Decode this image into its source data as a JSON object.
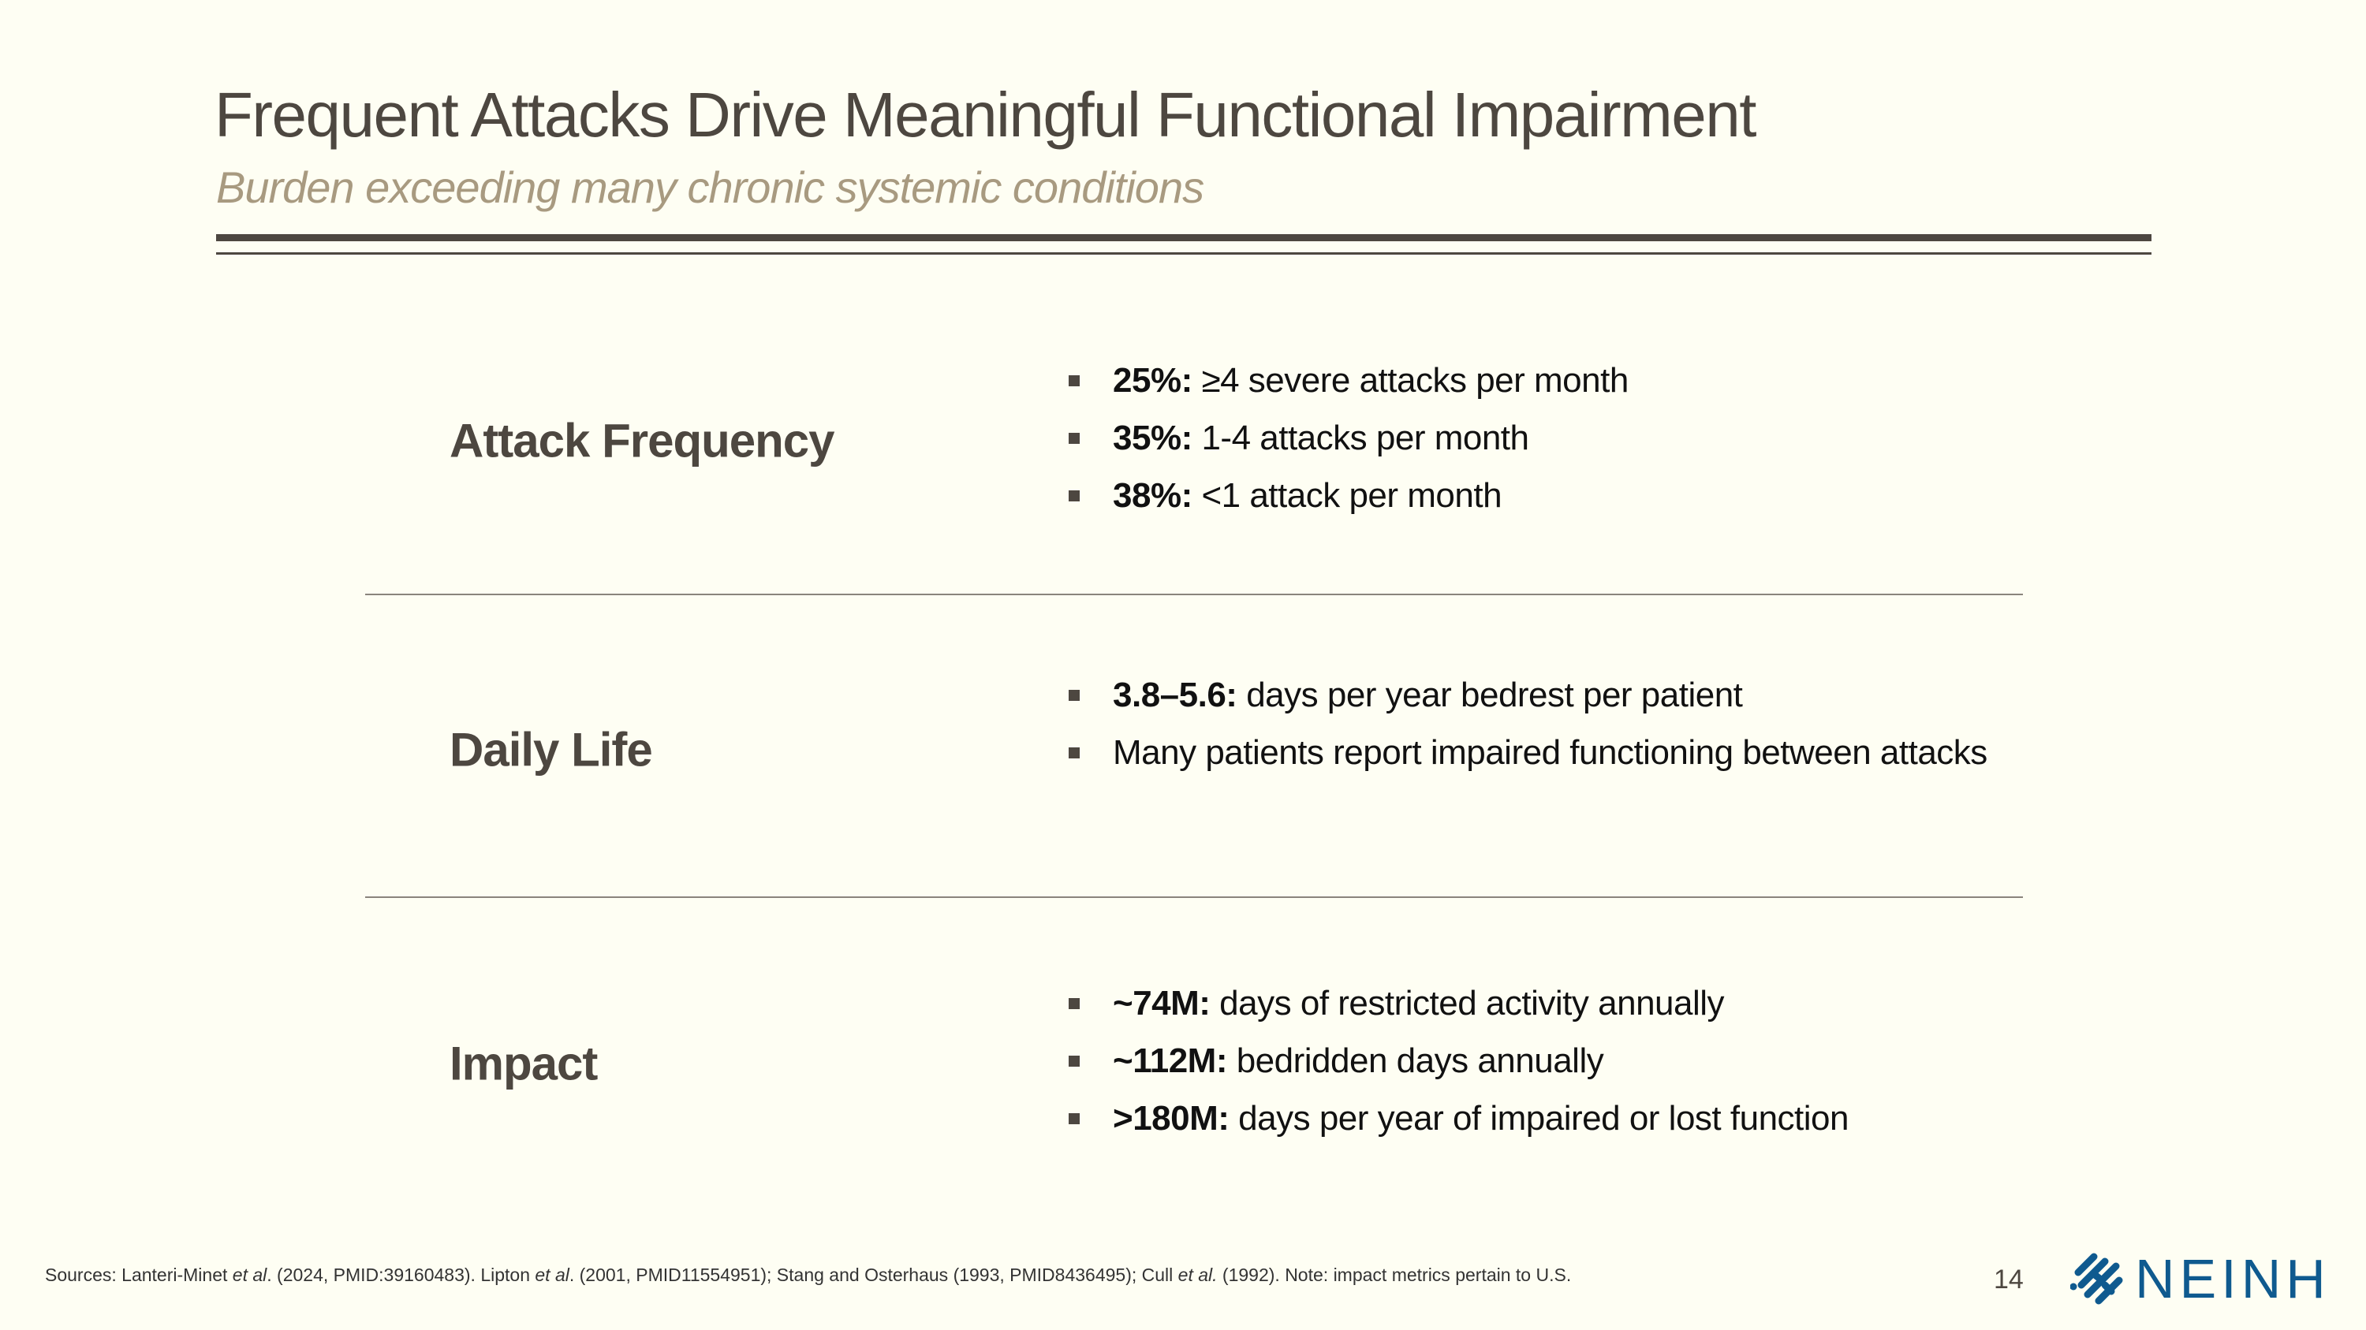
{
  "header": {
    "title": "Frequent Attacks Drive Meaningful Functional Impairment",
    "subtitle": "Burden exceeding many chronic systemic conditions"
  },
  "sections": [
    {
      "label": "Attack Frequency",
      "bullets": [
        {
          "bold": "25%:",
          "text": " ≥4 severe attacks per month"
        },
        {
          "bold": "35%:",
          "text": " 1-4 attacks per month"
        },
        {
          "bold": "38%:",
          "text": " <1 attack per month"
        }
      ]
    },
    {
      "label": "Daily Life",
      "bullets": [
        {
          "bold": "3.8–5.6:",
          "text": " days per year bedrest per patient"
        },
        {
          "bold": "",
          "text": "Many patients report impaired functioning between attacks"
        }
      ]
    },
    {
      "label": "Impact",
      "bullets": [
        {
          "bold": "~74M:",
          "text": " days of restricted activity annually"
        },
        {
          "bold": "~112M:",
          "text": " bedridden days annually"
        },
        {
          "bold": ">180M:",
          "text": " days per year of impaired or lost function"
        }
      ]
    }
  ],
  "footer": {
    "parts": [
      "Sources: Lanteri-Minet ",
      "et al",
      ". (2024, PMID:39160483). Lipton ",
      "et al",
      ". (2001, PMID11554951); Stang and Osterhaus (1993, PMID8436495); Cull  ",
      "et al.",
      " (1992). Note: impact metrics pertain to U.S."
    ],
    "page_number": "14"
  },
  "logo": {
    "text": "NEINH",
    "color": "#0f5a8f"
  },
  "colors": {
    "background": "#fefef3",
    "title": "#4d4740",
    "subtitle": "#a89a80"
  }
}
